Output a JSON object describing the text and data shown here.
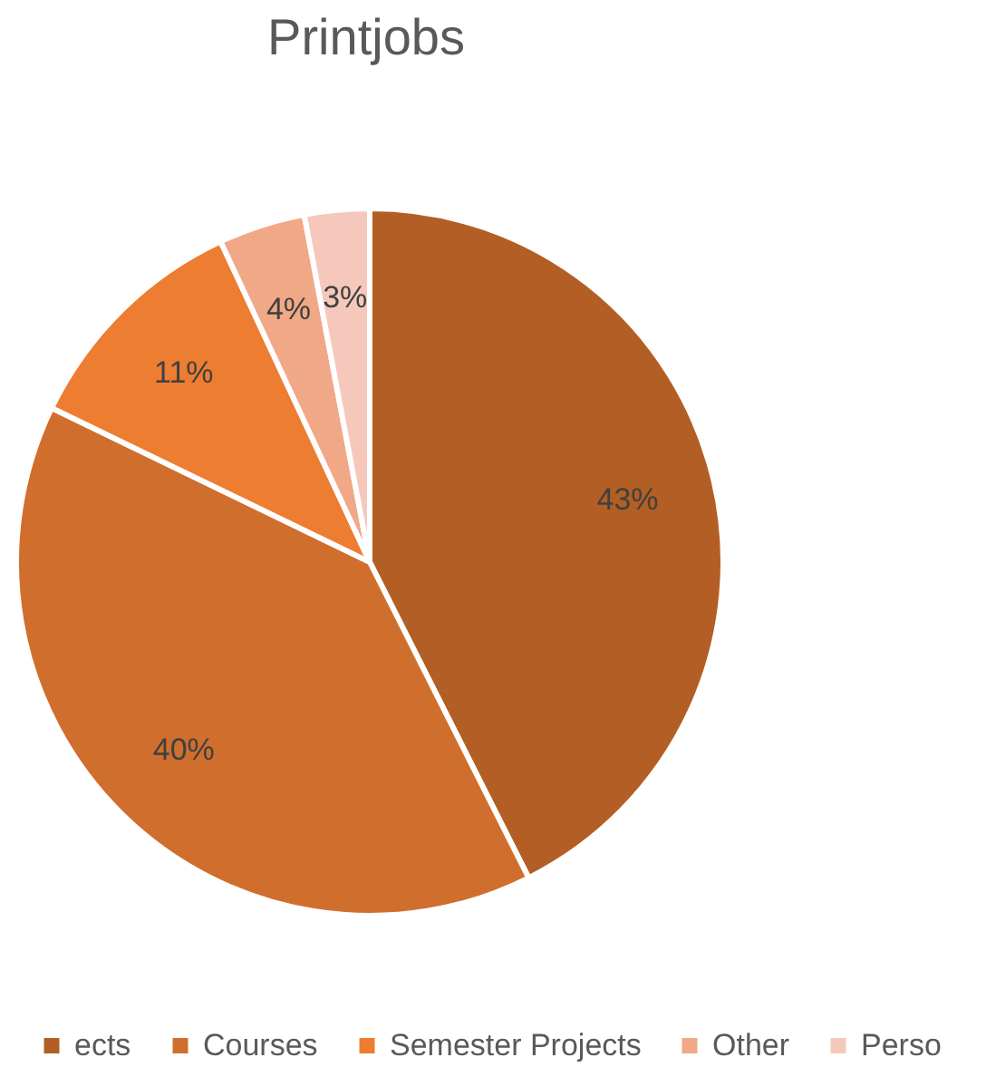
{
  "chart_data": {
    "type": "pie",
    "title": "Printjobs",
    "categories": [
      "ects",
      "Courses",
      "Semester Projects",
      "Other",
      "Perso"
    ],
    "values": [
      43,
      40,
      11,
      4,
      3
    ],
    "colors": [
      "#b35e24",
      "#d06e2d",
      "#ed7d31",
      "#f1a886",
      "#f6c8bc"
    ],
    "value_labels": [
      "43%",
      "40%",
      "11%",
      "4%",
      "3%"
    ],
    "legend": "bottom"
  }
}
